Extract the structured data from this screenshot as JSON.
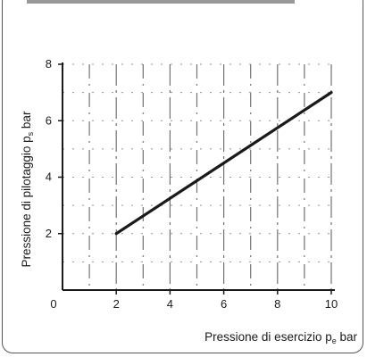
{
  "chart_data": {
    "type": "line",
    "xlabel": "Pressione di esercizio p_e bar",
    "ylabel": "Pressione di pilotaggio p_s bar",
    "xlim": [
      0,
      10
    ],
    "ylim": [
      0,
      8
    ],
    "x_ticks": [
      {
        "value": 0,
        "label": "0"
      },
      {
        "value": 2,
        "label": "2"
      },
      {
        "value": 4,
        "label": "4"
      },
      {
        "value": 6,
        "label": "6"
      },
      {
        "value": 8,
        "label": "8"
      },
      {
        "value": 10,
        "label": "10"
      }
    ],
    "y_ticks": [
      {
        "value": 2,
        "label": "2"
      },
      {
        "value": 4,
        "label": "4"
      },
      {
        "value": 6,
        "label": "6"
      },
      {
        "value": 8,
        "label": "8"
      }
    ],
    "grid": true,
    "series": [
      {
        "x": [
          2,
          10
        ],
        "y": [
          2,
          7
        ],
        "color": "#1a1a1a"
      }
    ]
  }
}
